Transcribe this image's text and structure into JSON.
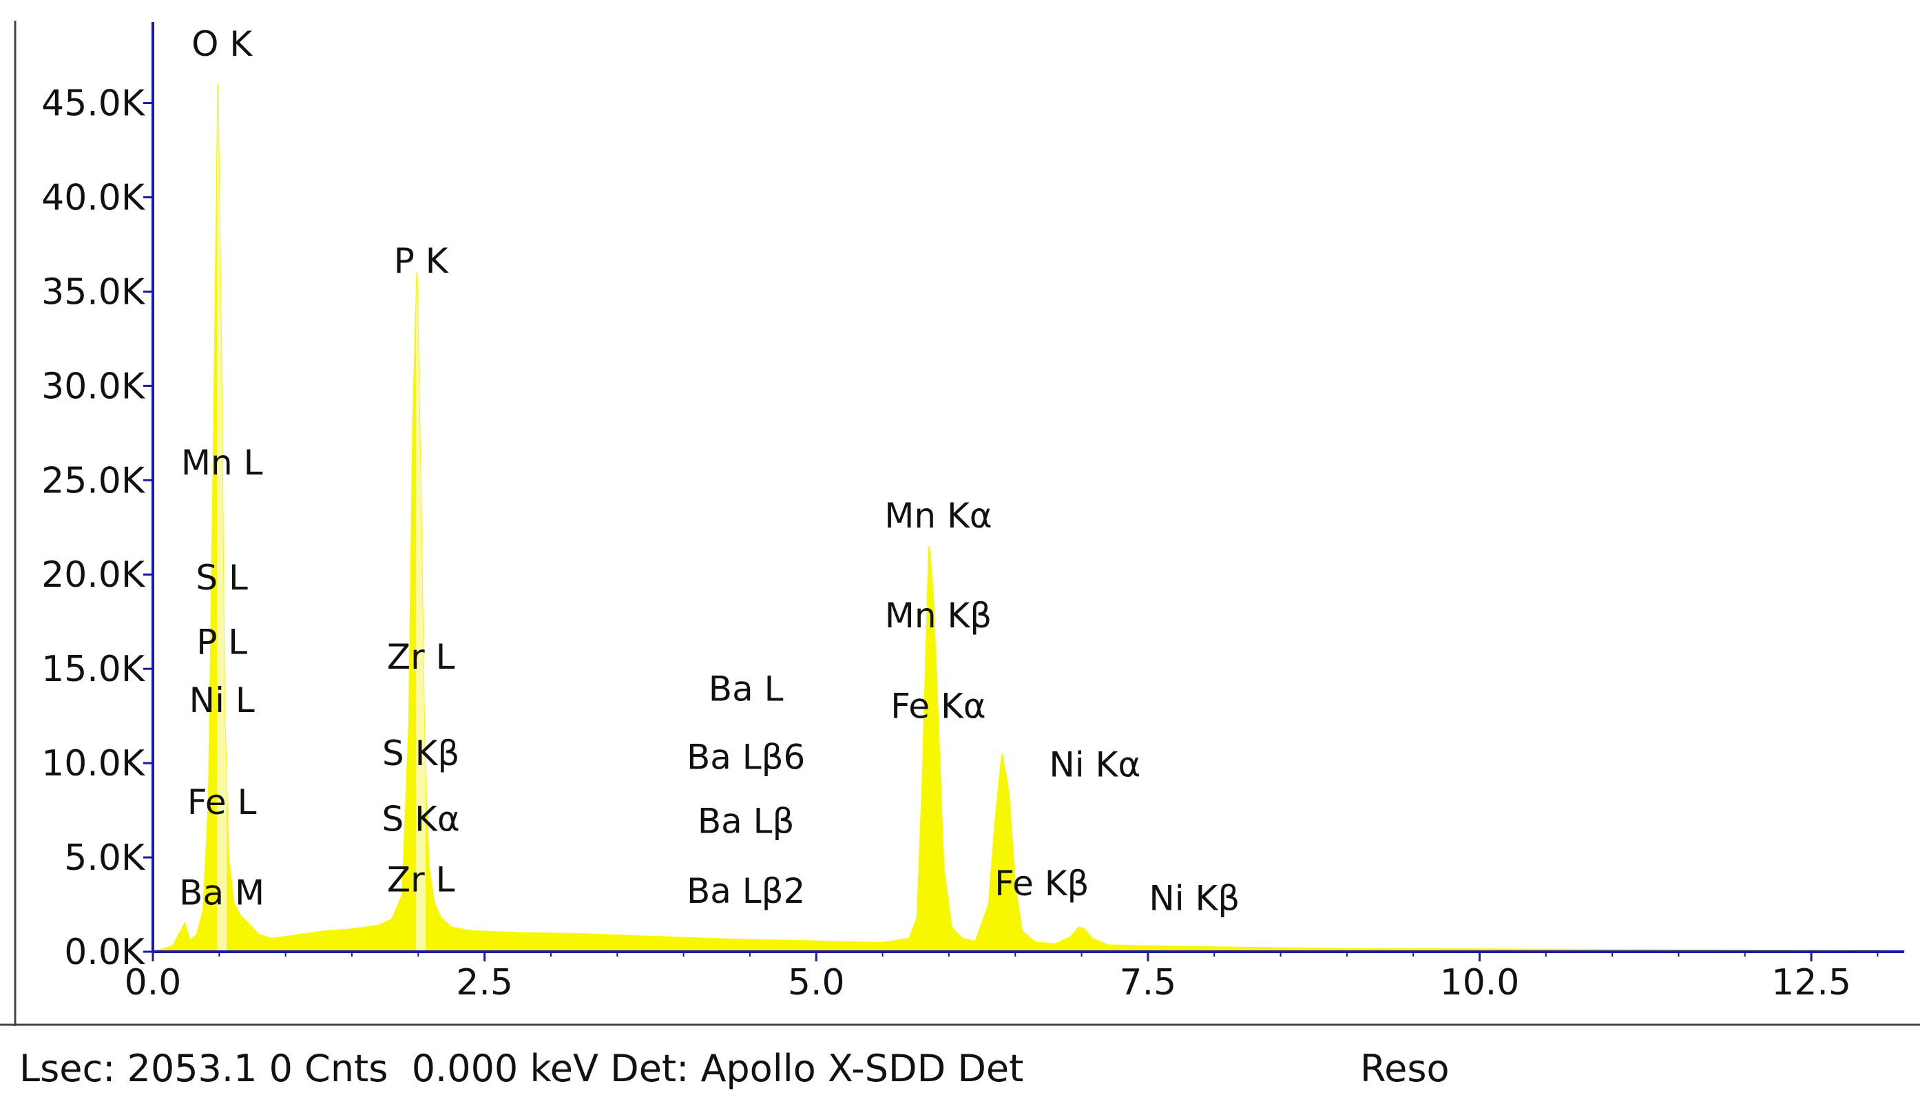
{
  "chart_data": {
    "type": "area",
    "title": "",
    "xlabel": "",
    "ylabel": "",
    "xlim": [
      0,
      13.2
    ],
    "ylim": [
      0,
      49000
    ],
    "x_ticks": [
      0.0,
      2.5,
      5.0,
      7.5,
      10.0,
      12.5
    ],
    "x_tick_labels": [
      "0.0",
      "2.5",
      "5.0",
      "7.5",
      "10.0",
      "12.5"
    ],
    "y_ticks": [
      0,
      5000,
      10000,
      15000,
      20000,
      25000,
      30000,
      35000,
      40000,
      45000
    ],
    "y_tick_labels": [
      "0.0K",
      "5.0K",
      "10.0K",
      "15.0K",
      "20.0K",
      "25.0K",
      "30.0K",
      "35.0K",
      "40.0K",
      "45.0K"
    ],
    "grid": false,
    "legend": "none",
    "colors": {
      "fill": "#f7f700",
      "stripe": "#f9f9a8",
      "axis": "#1a1aa8",
      "text": "#111111"
    },
    "series": [
      {
        "x": [
          0.0,
          0.15,
          0.24,
          0.28,
          0.33,
          0.38,
          0.42,
          0.46,
          0.49,
          0.515,
          0.54,
          0.57,
          0.61,
          0.66,
          0.72,
          0.8,
          0.9,
          1.1,
          1.3,
          1.5,
          1.7,
          1.8,
          1.88,
          1.93,
          1.96,
          1.99,
          2.02,
          2.05,
          2.08,
          2.12,
          2.17,
          2.25,
          2.4,
          2.8,
          3.2,
          3.6,
          4.0,
          4.4,
          4.8,
          5.2,
          5.5,
          5.7,
          5.76,
          5.8,
          5.85,
          5.88,
          5.92,
          5.96,
          6.02,
          6.1,
          6.2,
          6.3,
          6.35,
          6.4,
          6.45,
          6.5,
          6.55,
          6.65,
          6.8,
          6.92,
          6.98,
          7.02,
          7.08,
          7.2,
          7.5,
          8.0,
          8.5,
          9.0,
          10.0,
          11.0,
          12.0,
          13.0,
          13.2
        ],
        "y": [
          0,
          300,
          1500,
          600,
          900,
          2200,
          8000,
          28000,
          46000,
          32000,
          13000,
          5000,
          2600,
          1900,
          1500,
          900,
          700,
          900,
          1100,
          1200,
          1400,
          1700,
          3000,
          12000,
          28000,
          36000,
          24000,
          10000,
          4500,
          2600,
          1800,
          1300,
          1100,
          1000,
          950,
          850,
          750,
          650,
          600,
          520,
          480,
          700,
          1800,
          9000,
          21500,
          19000,
          12000,
          4500,
          1300,
          700,
          550,
          2500,
          7000,
          10500,
          8500,
          3500,
          1100,
          500,
          400,
          800,
          1300,
          1200,
          700,
          350,
          300,
          250,
          200,
          160,
          140,
          110,
          80,
          60,
          40
        ]
      }
    ],
    "annotations": [
      {
        "text": "O  K",
        "x": 0.52,
        "y": 47500
      },
      {
        "text": "P  K",
        "x": 2.02,
        "y": 36000
      },
      {
        "text": "Mn L",
        "x": 0.52,
        "y": 25300
      },
      {
        "text": "S  L",
        "x": 0.52,
        "y": 19200
      },
      {
        "text": "P  L",
        "x": 0.52,
        "y": 15800
      },
      {
        "text": "Ni L",
        "x": 0.52,
        "y": 12700
      },
      {
        "text": "Fe L",
        "x": 0.52,
        "y": 7300
      },
      {
        "text": "Ba M",
        "x": 0.52,
        "y": 2500
      },
      {
        "text": "Zr L",
        "x": 2.02,
        "y": 15000
      },
      {
        "text": "S  Kβ",
        "x": 2.02,
        "y": 9900
      },
      {
        "text": "S  Kα",
        "x": 2.02,
        "y": 6400
      },
      {
        "text": "Zr L",
        "x": 2.02,
        "y": 3200
      },
      {
        "text": "Ba L",
        "x": 4.47,
        "y": 13300
      },
      {
        "text": "Ba Lβ6",
        "x": 4.47,
        "y": 9700
      },
      {
        "text": "Ba Lβ",
        "x": 4.47,
        "y": 6300
      },
      {
        "text": "Ba Lβ2",
        "x": 4.47,
        "y": 2600
      },
      {
        "text": "Mn Kα",
        "x": 5.92,
        "y": 22500
      },
      {
        "text": "Mn Kβ",
        "x": 5.92,
        "y": 17200
      },
      {
        "text": "Fe Kα",
        "x": 5.92,
        "y": 12400
      },
      {
        "text": "Ni Kα",
        "x": 7.1,
        "y": 9300
      },
      {
        "text": "Fe Kβ",
        "x": 6.7,
        "y": 3000
      },
      {
        "text": "Ni Kβ",
        "x": 7.85,
        "y": 2200
      }
    ],
    "marker_lines_x": [
      0.52,
      2.02
    ]
  },
  "status_bar": {
    "left_text": "Lsec: 2053.1 0 Cnts  0.000 keV Det: Apollo X-SDD Det",
    "reso_text": "Reso"
  }
}
